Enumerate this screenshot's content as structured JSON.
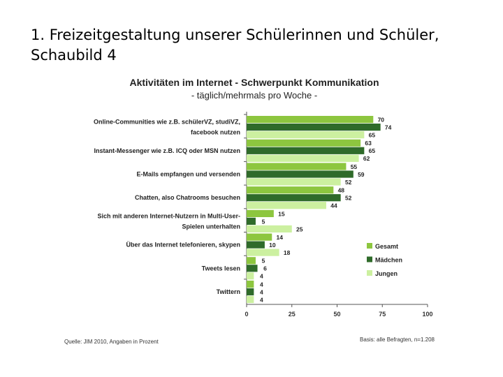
{
  "slide": {
    "title_line1": "1. Freizeitgestaltung unserer Schülerinnen und Schüler,",
    "title_line2": "Schaubild 4"
  },
  "colors": {
    "gesamt": "#8dc63f",
    "maedchen": "#2f6b2a",
    "jungen": "#ccf0a0"
  },
  "chart_data": {
    "type": "bar",
    "orientation": "horizontal",
    "title": "Aktivitäten im Internet  - Schwerpunkt Kommunikation",
    "subtitle": "- täglich/mehrmals pro Woche -",
    "categories": [
      [
        "Online-Communities wie z.B. schülerVZ, studiVZ,",
        "facebook nutzen"
      ],
      [
        "Instant-Messenger wie z.B. ICQ oder MSN nutzen"
      ],
      [
        "E-Mails empfangen und versenden"
      ],
      [
        "Chatten, also Chatrooms besuchen"
      ],
      [
        "Sich mit anderen Internet-Nutzern in Multi-User-",
        "Spielen unterhalten"
      ],
      [
        "Über das Internet telefonieren, skypen"
      ],
      [
        "Tweets lesen"
      ],
      [
        "Twittern"
      ]
    ],
    "series": [
      {
        "name": "Gesamt",
        "values": [
          70,
          63,
          55,
          48,
          15,
          14,
          5,
          4
        ]
      },
      {
        "name": "Mädchen",
        "values": [
          74,
          65,
          59,
          52,
          5,
          10,
          6,
          4
        ]
      },
      {
        "name": "Jungen",
        "values": [
          65,
          62,
          52,
          44,
          25,
          18,
          4,
          4
        ]
      }
    ],
    "xlim": [
      0,
      100
    ],
    "xticks": [
      0,
      25,
      50,
      75,
      100
    ],
    "legend_position": "bottom-right",
    "source": "Quelle: JIM 2010, Angaben in Prozent",
    "basis": "Basis: alle Befragten, n=1.208"
  }
}
